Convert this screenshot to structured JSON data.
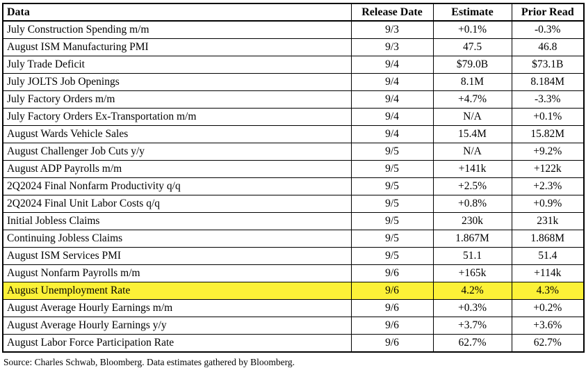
{
  "chart_data": {
    "type": "table",
    "columns": [
      "Data",
      "Release Date",
      "Estimate",
      "Prior Read"
    ],
    "rows": [
      [
        "July Construction Spending m/m",
        "9/3",
        "+0.1%",
        "-0.3%"
      ],
      [
        "August ISM Manufacturing PMI",
        "9/3",
        "47.5",
        "46.8"
      ],
      [
        "July Trade Deficit",
        "9/4",
        "$79.0B",
        "$73.1B"
      ],
      [
        "July JOLTS Job Openings",
        "9/4",
        "8.1M",
        "8.184M"
      ],
      [
        "July Factory Orders m/m",
        "9/4",
        "+4.7%",
        "-3.3%"
      ],
      [
        "July Factory Orders Ex-Transportation m/m",
        "9/4",
        "N/A",
        "+0.1%"
      ],
      [
        "August Wards Vehicle Sales",
        "9/4",
        "15.4M",
        "15.82M"
      ],
      [
        "August Challenger Job Cuts y/y",
        "9/5",
        "N/A",
        "+9.2%"
      ],
      [
        "August ADP Payrolls m/m",
        "9/5",
        "+141k",
        "+122k"
      ],
      [
        "2Q2024 Final Nonfarm Productivity q/q",
        "9/5",
        "+2.5%",
        "+2.3%"
      ],
      [
        "2Q2024 Final Unit Labor Costs q/q",
        "9/5",
        "+0.8%",
        "+0.9%"
      ],
      [
        "Initial Jobless Claims",
        "9/5",
        "230k",
        "231k"
      ],
      [
        "Continuing Jobless Claims",
        "9/5",
        "1.867M",
        "1.868M"
      ],
      [
        "August ISM Services PMI",
        "9/5",
        "51.1",
        "51.4"
      ],
      [
        "August Nonfarm Payrolls m/m",
        "9/6",
        "+165k",
        "+114k"
      ],
      [
        "August Unemployment Rate",
        "9/6",
        "4.2%",
        "4.3%"
      ],
      [
        "August Average Hourly Earnings m/m",
        "9/6",
        "+0.3%",
        "+0.2%"
      ],
      [
        "August Average Hourly Earnings y/y",
        "9/6",
        "+3.7%",
        "+3.6%"
      ],
      [
        "August Labor Force Participation Rate",
        "9/6",
        "62.7%",
        "62.7%"
      ]
    ],
    "source_note": "Source: Charles Schwab, Bloomberg. Data estimates gathered by Bloomberg."
  },
  "display": {
    "rows": [
      {
        "pre": "July ",
        "hl": "Construction Spending",
        "post": " m/m",
        "hl_class": "hl1",
        "row_highlight": false,
        "estimate_highlight": false
      },
      {
        "pre": "August ",
        "hl": "ISM Manufacturing PMI",
        "post": "",
        "hl_class": "hl2",
        "row_highlight": false,
        "estimate_highlight": false
      },
      {
        "pre": "",
        "hl": "",
        "post": "",
        "hl_class": "",
        "row_highlight": false,
        "estimate_highlight": false
      },
      {
        "pre": "",
        "hl": "",
        "post": "",
        "hl_class": "",
        "row_highlight": false,
        "estimate_highlight": false
      },
      {
        "pre": "",
        "hl": "",
        "post": "",
        "hl_class": "",
        "row_highlight": false,
        "estimate_highlight": false
      },
      {
        "pre": "",
        "hl": "",
        "post": "",
        "hl_class": "",
        "row_highlight": false,
        "estimate_highlight": false
      },
      {
        "pre": "",
        "hl": "",
        "post": "",
        "hl_class": "",
        "row_highlight": false,
        "estimate_highlight": false
      },
      {
        "pre": "",
        "hl": "",
        "post": "",
        "hl_class": "",
        "row_highlight": false,
        "estimate_highlight": false
      },
      {
        "pre": "",
        "hl": "",
        "post": "",
        "hl_class": "",
        "row_highlight": false,
        "estimate_highlight": false
      },
      {
        "pre": "",
        "hl": "2Q2024 Final Nonfarm Productivity q/q",
        "post": "",
        "hl_class": "hl10",
        "row_highlight": false,
        "estimate_highlight": false
      },
      {
        "pre": "",
        "hl": "2Q2024 Final Unit Labor Costs q/q",
        "post": "",
        "hl_class": "hl11",
        "row_highlight": false,
        "estimate_highlight": false
      },
      {
        "pre": "",
        "hl": "",
        "post": "",
        "hl_class": "",
        "row_highlight": false,
        "estimate_highlight": true
      },
      {
        "pre": "",
        "hl": "",
        "post": "",
        "hl_class": "",
        "row_highlight": false,
        "estimate_highlight": false
      },
      {
        "pre": "August ",
        "hl": "ISM Services PMI",
        "post": "",
        "hl_class": "hl14",
        "row_highlight": false,
        "estimate_highlight": false
      },
      {
        "pre": "",
        "hl": "",
        "post": "",
        "hl_class": "",
        "row_highlight": false,
        "estimate_highlight": false
      },
      {
        "pre": "",
        "hl": "",
        "post": "",
        "hl_class": "",
        "row_highlight": true,
        "estimate_highlight": false
      },
      {
        "pre": "",
        "hl": "",
        "post": "",
        "hl_class": "",
        "row_highlight": false,
        "estimate_highlight": false
      },
      {
        "pre": "",
        "hl": "",
        "post": "",
        "hl_class": "",
        "row_highlight": false,
        "estimate_highlight": false
      },
      {
        "pre": "",
        "hl": "",
        "post": "",
        "hl_class": "",
        "row_highlight": false,
        "estimate_highlight": false
      }
    ]
  },
  "colors": {
    "highlight": "#fcf137",
    "border": "#000000",
    "text": "#000000",
    "background": "#ffffff"
  }
}
